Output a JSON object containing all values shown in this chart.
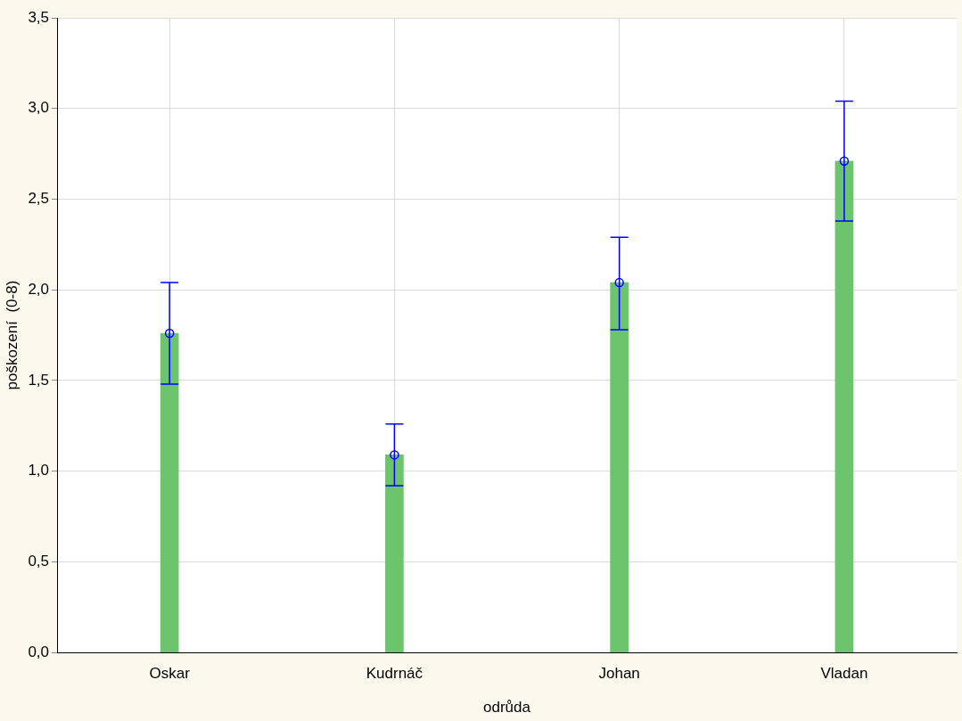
{
  "chart_data": {
    "type": "bar",
    "xlabel": "odrůda",
    "ylabel": "poškození  (0-8)",
    "categories": [
      "Oskar",
      "Kudrnáč",
      "Johan",
      "Vladan"
    ],
    "series": [
      {
        "color": "#6cc46c",
        "values": [
          1.76,
          1.09,
          2.04,
          2.71
        ],
        "errors": [
          [
            1.48,
            2.04
          ],
          [
            0.92,
            1.26
          ],
          [
            1.78,
            2.29
          ],
          [
            2.38,
            3.04
          ]
        ]
      },
      {
        "type": "scatter",
        "color": "#0000ff",
        "marker": "circle",
        "x": [
          "Oskar",
          "Kudrnáč",
          "Johan",
          "Vladan"
        ],
        "values": [
          1.76,
          1.09,
          2.04,
          2.71
        ]
      }
    ],
    "ylim": [
      0,
      3.5
    ],
    "yticks": [
      {
        "value": 0,
        "label": "0,0"
      },
      {
        "value": 0.5,
        "label": "0,5"
      },
      {
        "value": 1,
        "label": "1,0"
      },
      {
        "value": 1.5,
        "label": "1,5"
      },
      {
        "value": 2,
        "label": "2,0"
      },
      {
        "value": 2.5,
        "label": "2,5"
      },
      {
        "value": 3,
        "label": "3,0"
      },
      {
        "value": 3.5,
        "label": "3,5"
      }
    ],
    "grid": true
  }
}
